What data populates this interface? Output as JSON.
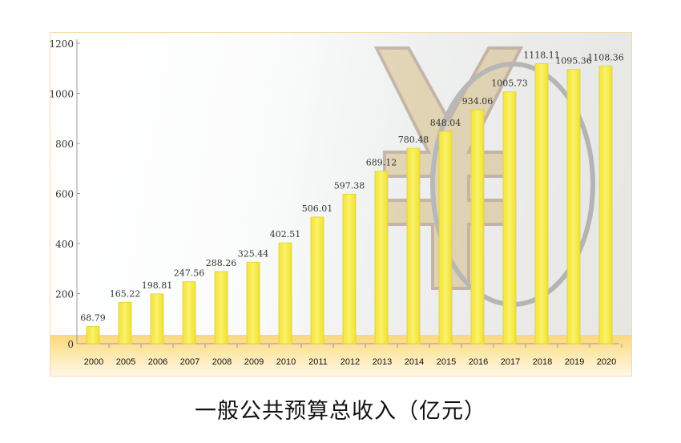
{
  "chart_data": {
    "type": "bar",
    "title": "一般公共预算总收入（亿元）",
    "xlabel": "",
    "ylabel": "",
    "categories": [
      "2000",
      "2005",
      "2006",
      "2007",
      "2008",
      "2009",
      "2010",
      "2011",
      "2012",
      "2013",
      "2014",
      "2015",
      "2016",
      "2017",
      "2018",
      "2019",
      "2020"
    ],
    "values": [
      68.79,
      165.22,
      198.81,
      247.56,
      288.26,
      325.44,
      402.51,
      506.01,
      597.38,
      689.12,
      780.48,
      848.04,
      934.06,
      1005.73,
      1118.11,
      1095.36,
      1108.36
    ],
    "value_labels": [
      "68.79",
      "165.22",
      "198.81",
      "247.56",
      "288.26",
      "325.44",
      "402.51",
      "506.01",
      "597.38",
      "689.12",
      "780.48",
      "848.04",
      "934.06",
      "1005.73",
      "1118.11",
      "1095.36",
      "1108.36"
    ],
    "yticks": [
      "0",
      "200",
      "400",
      "600",
      "800",
      "1000",
      "1200"
    ],
    "ylim": [
      0,
      1200
    ],
    "grid": false,
    "bar_color": "#f5ea4a"
  }
}
